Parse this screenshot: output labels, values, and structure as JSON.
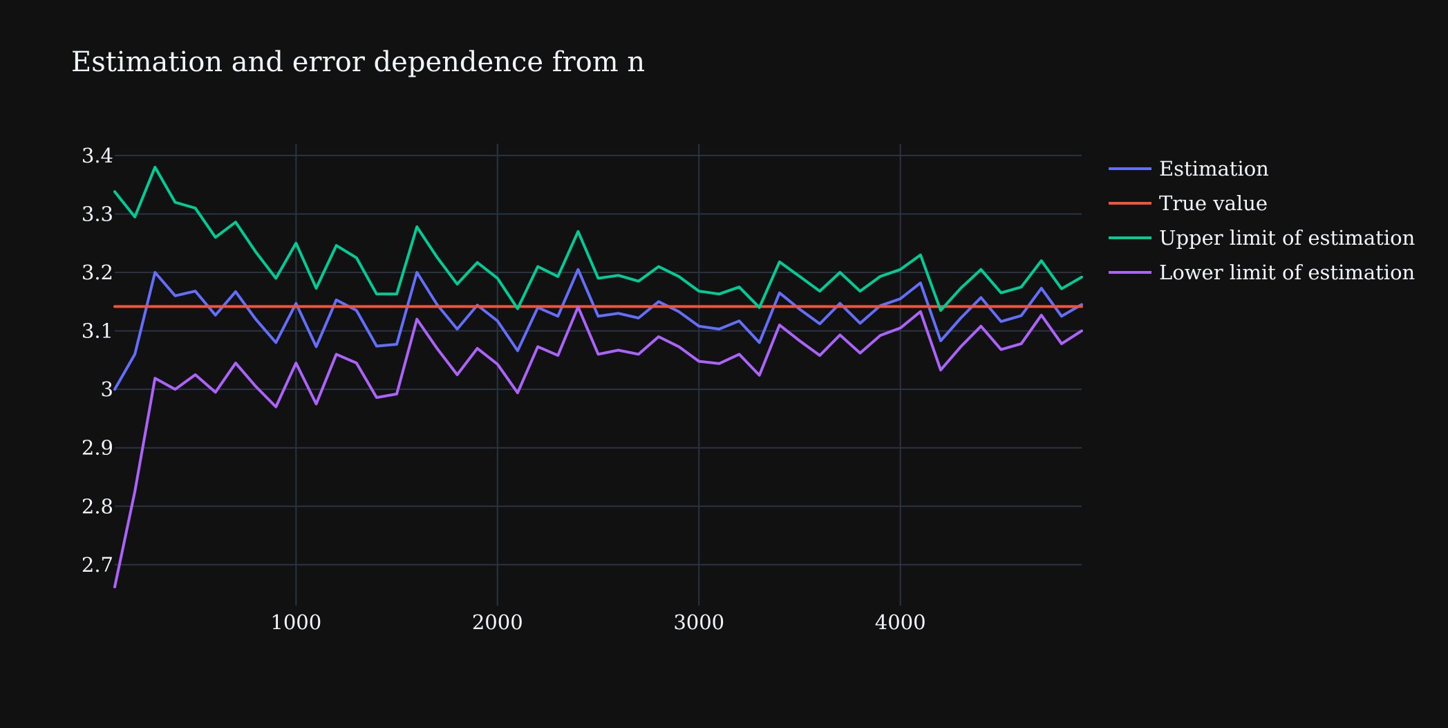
{
  "chart_data": {
    "type": "line",
    "title": "Estimation and error dependence from n",
    "xlabel": "",
    "ylabel": "",
    "xlim": [
      100,
      4900
    ],
    "ylim": [
      2.63,
      3.42
    ],
    "x_ticks": [
      1000,
      2000,
      3000,
      4000
    ],
    "y_ticks": [
      2.7,
      2.8,
      2.9,
      3,
      3.1,
      3.2,
      3.3,
      3.4
    ],
    "y_tick_labels": [
      "2.7",
      "2.8",
      "2.9",
      "3",
      "3.1",
      "3.2",
      "3.3",
      "3.4"
    ],
    "x_tick_labels": [
      "1000",
      "2000",
      "3000",
      "4000"
    ],
    "grid": true,
    "legend_position": "top-right",
    "x": [
      100,
      200,
      300,
      400,
      500,
      600,
      700,
      800,
      900,
      1000,
      1100,
      1200,
      1300,
      1400,
      1500,
      1600,
      1700,
      1800,
      1900,
      2000,
      2100,
      2200,
      2300,
      2400,
      2500,
      2600,
      2700,
      2800,
      2900,
      3000,
      3100,
      3200,
      3300,
      3400,
      3500,
      3600,
      3700,
      3800,
      3900,
      4000,
      4100,
      4200,
      4300,
      4400,
      4500,
      4600,
      4700,
      4800,
      4900
    ],
    "series": [
      {
        "name": "Estimation",
        "color": "#636efa",
        "values": [
          3.0,
          3.06,
          3.2,
          3.16,
          3.168,
          3.127,
          3.167,
          3.12,
          3.08,
          3.147,
          3.073,
          3.153,
          3.135,
          3.074,
          3.077,
          3.2,
          3.145,
          3.103,
          3.144,
          3.117,
          3.066,
          3.14,
          3.125,
          3.205,
          3.125,
          3.13,
          3.122,
          3.15,
          3.133,
          3.108,
          3.103,
          3.117,
          3.08,
          3.165,
          3.137,
          3.112,
          3.147,
          3.113,
          3.143,
          3.155,
          3.182,
          3.083,
          3.122,
          3.157,
          3.116,
          3.126,
          3.173,
          3.125,
          3.145
        ]
      },
      {
        "name": "True value",
        "color": "#ef553b",
        "values": [
          3.141592653589793,
          3.141592653589793,
          3.141592653589793,
          3.141592653589793,
          3.141592653589793,
          3.141592653589793,
          3.141592653589793,
          3.141592653589793,
          3.141592653589793,
          3.141592653589793,
          3.141592653589793,
          3.141592653589793,
          3.141592653589793,
          3.141592653589793,
          3.141592653589793,
          3.141592653589793,
          3.141592653589793,
          3.141592653589793,
          3.141592653589793,
          3.141592653589793,
          3.141592653589793,
          3.141592653589793,
          3.141592653589793,
          3.141592653589793,
          3.141592653589793,
          3.141592653589793,
          3.141592653589793,
          3.141592653589793,
          3.141592653589793,
          3.141592653589793,
          3.141592653589793,
          3.141592653589793,
          3.141592653589793,
          3.141592653589793,
          3.141592653589793,
          3.141592653589793,
          3.141592653589793,
          3.141592653589793,
          3.141592653589793,
          3.141592653589793,
          3.141592653589793,
          3.141592653589793,
          3.141592653589793,
          3.141592653589793,
          3.141592653589793,
          3.141592653589793,
          3.141592653589793,
          3.141592653589793,
          3.141592653589793
        ]
      },
      {
        "name": "Upper limit of estimation",
        "color": "#00cc96",
        "values": [
          3.338,
          3.295,
          3.38,
          3.32,
          3.31,
          3.26,
          3.286,
          3.235,
          3.19,
          3.25,
          3.173,
          3.246,
          3.225,
          3.163,
          3.163,
          3.278,
          3.226,
          3.18,
          3.217,
          3.19,
          3.138,
          3.21,
          3.193,
          3.27,
          3.19,
          3.195,
          3.185,
          3.21,
          3.193,
          3.168,
          3.163,
          3.175,
          3.14,
          3.218,
          3.193,
          3.168,
          3.2,
          3.168,
          3.193,
          3.205,
          3.23,
          3.135,
          3.173,
          3.205,
          3.165,
          3.175,
          3.22,
          3.172,
          3.192
        ]
      },
      {
        "name": "Lower limit of estimation",
        "color": "#ab63fa",
        "values": [
          2.662,
          2.825,
          3.019,
          3.0,
          3.025,
          2.995,
          3.045,
          3.005,
          2.97,
          3.045,
          2.975,
          3.06,
          3.045,
          2.986,
          2.992,
          3.12,
          3.07,
          3.025,
          3.07,
          3.043,
          2.994,
          3.073,
          3.058,
          3.141,
          3.06,
          3.067,
          3.06,
          3.09,
          3.073,
          3.048,
          3.044,
          3.06,
          3.024,
          3.11,
          3.083,
          3.058,
          3.093,
          3.062,
          3.092,
          3.105,
          3.133,
          3.033,
          3.073,
          3.108,
          3.068,
          3.078,
          3.127,
          3.078,
          3.1
        ]
      }
    ]
  }
}
